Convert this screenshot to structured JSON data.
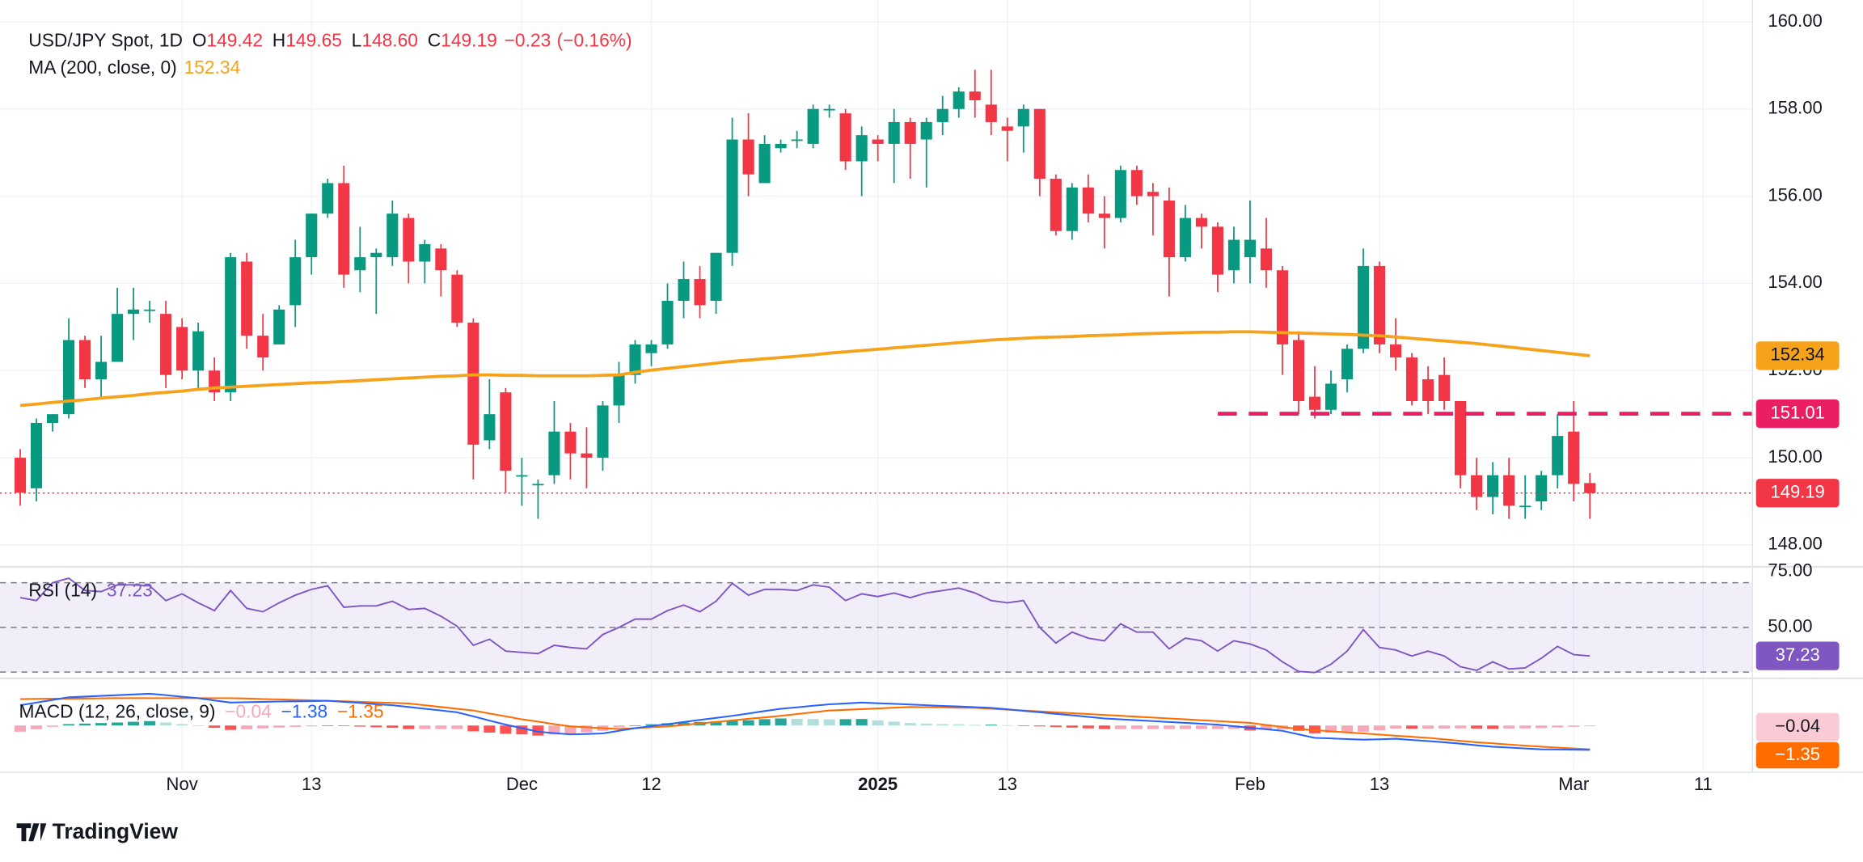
{
  "brand": "TradingView",
  "chart_data": [
    {
      "type": "candlestick",
      "title": "USD/JPY Spot, 1D",
      "legend": [
        {
          "label": "O",
          "value": "149.42"
        },
        {
          "label": "H",
          "value": "149.65"
        },
        {
          "label": "L",
          "value": "148.60"
        },
        {
          "label": "C",
          "value": "149.19"
        }
      ],
      "change": "−0.23",
      "change_pct": "(−0.16%)",
      "up_color": "#089981",
      "down_color": "#f23645",
      "open": [
        150.0,
        149.3,
        150.8,
        151.0,
        152.7,
        151.8,
        152.2,
        153.3,
        153.4,
        153.3,
        153.0,
        152.0,
        152.0,
        151.5,
        154.5,
        152.8,
        152.6,
        153.5,
        154.6,
        155.6,
        156.3,
        154.3,
        154.6,
        154.6,
        155.5,
        154.5,
        154.8,
        154.2,
        153.1,
        150.4,
        151.5,
        149.6,
        149.4,
        149.6,
        150.6,
        150.1,
        150.0,
        151.2,
        151.9,
        152.4,
        152.6,
        153.6,
        154.1,
        153.6,
        154.7,
        157.3,
        156.3,
        157.1,
        157.3,
        157.2,
        158.0,
        157.9,
        156.8,
        157.3,
        157.2,
        157.7,
        157.3,
        157.7,
        158.0,
        158.4,
        158.1,
        157.6,
        157.6,
        158.0,
        156.4,
        155.2,
        156.2,
        155.6,
        155.5,
        156.6,
        156.1,
        155.9,
        154.6,
        155.5,
        155.3,
        154.3,
        154.6,
        154.8,
        154.3,
        152.7,
        151.4,
        151.1,
        151.8,
        152.5,
        154.4,
        152.6,
        152.3,
        151.8,
        151.9,
        151.3,
        149.6,
        149.1,
        149.6,
        148.9,
        149.0,
        149.6,
        150.6,
        149.42
      ],
      "high": [
        150.2,
        150.9,
        151.0,
        153.2,
        152.8,
        152.8,
        153.9,
        153.9,
        153.6,
        153.6,
        153.2,
        153.1,
        152.3,
        154.7,
        154.7,
        153.3,
        153.5,
        155.0,
        155.6,
        156.4,
        156.7,
        155.3,
        154.8,
        155.9,
        155.6,
        155.0,
        154.9,
        154.3,
        153.2,
        151.8,
        151.6,
        150.0,
        149.5,
        151.3,
        150.8,
        150.7,
        151.3,
        152.2,
        152.7,
        152.7,
        154.0,
        154.5,
        154.4,
        154.7,
        157.8,
        157.9,
        157.4,
        157.3,
        157.5,
        158.1,
        158.1,
        158.0,
        157.6,
        157.4,
        158.0,
        157.8,
        157.8,
        158.3,
        158.5,
        158.9,
        158.9,
        157.8,
        158.1,
        158.0,
        156.5,
        156.3,
        156.5,
        156.0,
        156.7,
        156.7,
        156.3,
        156.2,
        155.8,
        155.6,
        155.4,
        155.3,
        155.9,
        155.5,
        154.4,
        152.9,
        152.1,
        152.0,
        152.6,
        154.8,
        154.5,
        153.2,
        152.4,
        152.1,
        152.3,
        151.3,
        150.0,
        149.9,
        150.0,
        149.6,
        149.7,
        151.0,
        151.3,
        149.65
      ],
      "low": [
        148.9,
        149.0,
        150.6,
        150.9,
        151.6,
        151.4,
        152.2,
        152.7,
        153.1,
        151.6,
        151.8,
        151.6,
        151.3,
        151.3,
        152.5,
        152.0,
        152.6,
        153.0,
        154.2,
        155.5,
        153.9,
        153.8,
        153.3,
        154.4,
        154.0,
        154.0,
        153.7,
        153.0,
        149.5,
        150.2,
        149.2,
        148.9,
        148.6,
        149.4,
        149.5,
        149.3,
        149.7,
        150.8,
        151.7,
        152.1,
        152.5,
        153.2,
        153.2,
        153.3,
        154.4,
        156.0,
        156.3,
        157.0,
        157.1,
        157.1,
        157.8,
        156.6,
        156.0,
        156.8,
        156.3,
        156.4,
        156.2,
        157.4,
        157.8,
        157.8,
        157.4,
        156.8,
        157.0,
        156.0,
        155.1,
        155.0,
        155.4,
        154.8,
        155.4,
        155.8,
        155.1,
        153.7,
        154.5,
        154.8,
        153.8,
        154.0,
        154.0,
        153.9,
        151.9,
        151.0,
        150.9,
        151.0,
        151.5,
        152.4,
        152.4,
        152.0,
        151.2,
        151.0,
        151.1,
        149.3,
        148.8,
        148.7,
        148.6,
        148.6,
        148.8,
        149.3,
        149.0,
        148.6
      ],
      "close": [
        149.2,
        150.8,
        151.0,
        152.7,
        151.8,
        152.2,
        153.3,
        153.4,
        153.4,
        151.9,
        152.0,
        152.9,
        151.5,
        154.6,
        152.8,
        152.3,
        153.4,
        154.6,
        155.6,
        156.3,
        154.2,
        154.6,
        154.7,
        155.6,
        154.5,
        154.9,
        154.3,
        153.1,
        150.3,
        151.0,
        149.7,
        149.6,
        149.4,
        150.6,
        150.1,
        150.0,
        151.2,
        151.9,
        152.6,
        152.6,
        153.6,
        154.1,
        153.5,
        154.7,
        157.3,
        156.5,
        157.2,
        157.2,
        157.3,
        158.0,
        158.0,
        156.8,
        157.4,
        157.2,
        157.7,
        157.2,
        157.7,
        158.0,
        158.4,
        158.2,
        157.7,
        157.5,
        158.0,
        156.4,
        155.2,
        156.2,
        155.6,
        155.5,
        156.6,
        156.0,
        156.0,
        154.6,
        155.5,
        155.3,
        154.2,
        155.0,
        155.0,
        154.3,
        152.6,
        151.3,
        151.1,
        151.7,
        152.5,
        154.4,
        152.6,
        152.3,
        151.3,
        151.3,
        151.3,
        149.6,
        149.1,
        149.6,
        148.9,
        148.9,
        149.6,
        150.5,
        149.4,
        149.19
      ],
      "ma": {
        "name": "MA (200, close, 0)",
        "color": "#f7a21b",
        "values": [
          151.2,
          151.23,
          151.27,
          151.3,
          151.33,
          151.37,
          151.4,
          151.43,
          151.47,
          151.5,
          151.53,
          151.57,
          151.6,
          151.62,
          151.64,
          151.66,
          151.68,
          151.7,
          151.72,
          151.73,
          151.75,
          151.77,
          151.79,
          151.81,
          151.83,
          151.85,
          151.87,
          151.88,
          151.9,
          151.9,
          151.89,
          151.89,
          151.88,
          151.88,
          151.88,
          151.88,
          151.89,
          151.9,
          151.96,
          152.01,
          152.05,
          152.09,
          152.13,
          152.17,
          152.21,
          152.24,
          152.27,
          152.3,
          152.33,
          152.36,
          152.4,
          152.43,
          152.46,
          152.49,
          152.52,
          152.55,
          152.58,
          152.61,
          152.64,
          152.67,
          152.7,
          152.72,
          152.74,
          152.76,
          152.77,
          152.78,
          152.8,
          152.81,
          152.82,
          152.84,
          152.85,
          152.86,
          152.87,
          152.88,
          152.88,
          152.89,
          152.89,
          152.88,
          152.87,
          152.86,
          152.85,
          152.84,
          152.83,
          152.81,
          152.8,
          152.77,
          152.74,
          152.71,
          152.68,
          152.65,
          152.62,
          152.58,
          152.54,
          152.5,
          152.46,
          152.42,
          152.38,
          152.34
        ]
      },
      "level": 151.01,
      "level_color": "#e91e63",
      "ylim": [
        147.5,
        160.5
      ],
      "yticks": [
        {
          "value": 148,
          "label": "148.00"
        },
        {
          "value": 150,
          "label": "150.00"
        },
        {
          "value": 152,
          "label": "152.00"
        },
        {
          "value": 154,
          "label": "154.00"
        },
        {
          "value": 156,
          "label": "156.00"
        },
        {
          "value": 158,
          "label": "158.00"
        },
        {
          "value": 160,
          "label": "160.00"
        }
      ],
      "xticks": [
        {
          "value": 10,
          "label": "Nov"
        },
        {
          "value": 18,
          "label": "13"
        },
        {
          "value": 31,
          "label": "Dec"
        },
        {
          "value": 39,
          "label": "12"
        },
        {
          "value": 53,
          "label": "2025"
        },
        {
          "value": 61,
          "label": "13"
        },
        {
          "value": 76,
          "label": "Feb"
        },
        {
          "value": 84,
          "label": "13"
        },
        {
          "value": 96,
          "label": "Mar"
        },
        {
          "value": 104,
          "label": "11"
        }
      ],
      "grid": true
    },
    {
      "type": "line",
      "name": "RSI (14)",
      "color": "#7e57c2",
      "values": [
        63.3,
        62,
        70,
        72,
        66.5,
        66,
        69,
        69,
        68.6,
        62,
        65,
        61,
        57.5,
        66.5,
        58.5,
        57,
        61,
        64.4,
        67,
        68.6,
        59,
        59.6,
        59.6,
        61.7,
        58,
        58.5,
        55,
        50.5,
        42,
        44.7,
        39.4,
        38.8,
        38.3,
        42,
        41,
        40.4,
        46.8,
        50,
        53.7,
        53.7,
        57.5,
        60,
        57,
        61.7,
        69.7,
        64.4,
        67,
        67,
        66.5,
        69,
        68,
        62,
        65,
        63.8,
        65.4,
        63.3,
        65.4,
        66.5,
        67.6,
        65.4,
        62,
        61,
        62,
        50,
        43,
        47.9,
        45.2,
        44,
        51.6,
        47.9,
        47.9,
        40.4,
        45.2,
        44,
        39.4,
        44,
        42.6,
        39.9,
        34.6,
        30.3,
        29.8,
        33.5,
        39.4,
        49,
        41,
        39.9,
        37.2,
        39.4,
        37.2,
        32.4,
        30.8,
        34.6,
        31.4,
        31.9,
        36.2,
        41.5,
        37.8,
        37.23
      ],
      "bands": [
        70,
        50,
        30
      ],
      "ylim": [
        27.7,
        76.6
      ],
      "yticks": [
        {
          "value": 75,
          "label": "75.00"
        },
        {
          "value": 50,
          "label": "50.00"
        }
      ]
    },
    {
      "type": "macd",
      "name": "MACD (12, 26, close, 9)",
      "histogram": {
        "label": "−0.04",
        "colors": [
          "#26a69a",
          "#b2dfdb",
          "#ff5252",
          "#f7a8b8"
        ],
        "values": [
          -0.35,
          -0.21,
          -0.07,
          0.08,
          0.11,
          0.14,
          0.17,
          0.21,
          0.25,
          0.17,
          0.08,
          0.0,
          -0.13,
          -0.25,
          -0.21,
          -0.16,
          -0.12,
          -0.08,
          -0.05,
          0.0,
          -0.03,
          -0.06,
          -0.1,
          -0.13,
          -0.2,
          -0.2,
          -0.2,
          -0.2,
          -0.33,
          -0.4,
          -0.47,
          -0.5,
          -0.57,
          -0.51,
          -0.45,
          -0.38,
          -0.3,
          -0.1,
          0.0,
          0.07,
          0.13,
          0.17,
          0.2,
          0.23,
          0.26,
          0.3,
          0.36,
          0.4,
          0.38,
          0.37,
          0.35,
          0.36,
          0.37,
          0.29,
          0.22,
          0.14,
          0.11,
          0.08,
          0.07,
          0.04,
          0.05,
          0.02,
          -0.02,
          -0.05,
          -0.09,
          -0.12,
          -0.16,
          -0.2,
          -0.2,
          -0.2,
          -0.2,
          -0.2,
          -0.2,
          -0.2,
          -0.2,
          -0.19,
          -0.28,
          -0.24,
          -0.22,
          -0.3,
          -0.44,
          -0.4,
          -0.38,
          -0.35,
          -0.27,
          -0.17,
          -0.18,
          -0.18,
          -0.17,
          -0.16,
          -0.17,
          -0.19,
          -0.17,
          -0.16,
          -0.15,
          -0.11,
          -0.07,
          -0.04
        ]
      },
      "macd": {
        "label": "−1.38",
        "color": "#2962ff",
        "values": [
          1.15,
          1.3,
          1.45,
          1.6,
          1.64,
          1.68,
          1.72,
          1.76,
          1.8,
          1.72,
          1.63,
          1.55,
          1.42,
          1.3,
          1.32,
          1.34,
          1.36,
          1.37,
          1.38,
          1.4,
          1.34,
          1.28,
          1.21,
          1.15,
          1.05,
          0.95,
          0.85,
          0.75,
          0.52,
          0.28,
          0.05,
          -0.15,
          -0.35,
          -0.43,
          -0.5,
          -0.48,
          -0.45,
          -0.3,
          -0.15,
          -0.03,
          0.08,
          0.2,
          0.32,
          0.43,
          0.55,
          0.68,
          0.82,
          0.95,
          1.03,
          1.12,
          1.2,
          1.25,
          1.3,
          1.26,
          1.23,
          1.19,
          1.15,
          1.11,
          1.08,
          1.04,
          1.0,
          0.92,
          0.83,
          0.75,
          0.66,
          0.58,
          0.49,
          0.4,
          0.35,
          0.3,
          0.25,
          0.2,
          0.15,
          0.1,
          0.05,
          -0.04,
          -0.13,
          -0.21,
          -0.3,
          -0.5,
          -0.7,
          -0.73,
          -0.77,
          -0.8,
          -0.78,
          -0.75,
          -0.82,
          -0.88,
          -0.95,
          -1.03,
          -1.12,
          -1.2,
          -1.25,
          -1.3,
          -1.35,
          -1.36,
          -1.37,
          -1.38
        ]
      },
      "signal": {
        "label": "−1.35",
        "color": "#ff6d00",
        "values": [
          1.5,
          1.51,
          1.52,
          1.52,
          1.53,
          1.54,
          1.55,
          1.55,
          1.55,
          1.55,
          1.55,
          1.55,
          1.55,
          1.55,
          1.53,
          1.5,
          1.48,
          1.45,
          1.43,
          1.4,
          1.37,
          1.34,
          1.31,
          1.28,
          1.25,
          1.15,
          1.05,
          0.95,
          0.85,
          0.68,
          0.52,
          0.35,
          0.22,
          0.08,
          -0.05,
          -0.1,
          -0.15,
          -0.2,
          -0.15,
          -0.1,
          -0.05,
          0.03,
          0.12,
          0.2,
          0.29,
          0.38,
          0.46,
          0.55,
          0.65,
          0.75,
          0.85,
          0.89,
          0.93,
          0.97,
          1.01,
          1.05,
          1.04,
          1.03,
          1.01,
          1.0,
          0.95,
          0.9,
          0.85,
          0.8,
          0.75,
          0.7,
          0.65,
          0.6,
          0.55,
          0.5,
          0.45,
          0.4,
          0.35,
          0.3,
          0.25,
          0.2,
          0.15,
          0.03,
          -0.08,
          -0.2,
          -0.26,
          -0.33,
          -0.39,
          -0.45,
          -0.51,
          -0.58,
          -0.64,
          -0.7,
          -0.78,
          -0.87,
          -0.95,
          -1.01,
          -1.08,
          -1.14,
          -1.2,
          -1.25,
          -1.3,
          -1.35
        ]
      },
      "ylim": [
        -2.65,
        2.6
      ]
    }
  ]
}
